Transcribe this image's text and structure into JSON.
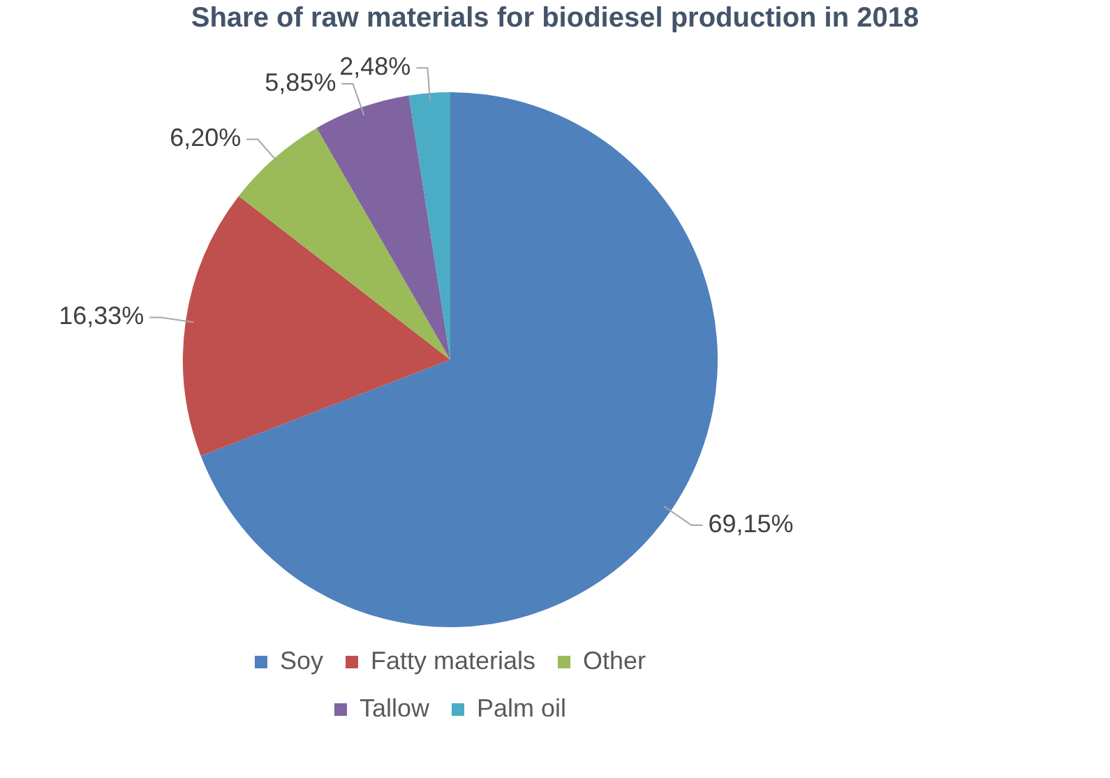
{
  "chart_data": {
    "type": "pie",
    "title": "Share of raw materials for biodiesel production in 2018",
    "categories": [
      "Soy",
      "Fatty materials",
      "Other",
      "Tallow",
      "Palm oil"
    ],
    "values": [
      69.15,
      16.33,
      6.2,
      5.85,
      2.48
    ],
    "colors": [
      "#4f81bd",
      "#c0504d",
      "#9bbb59",
      "#8064a2",
      "#4bacc6"
    ],
    "value_labels": [
      "69,15%",
      "16,33%",
      "6,20%",
      "5,85%",
      "2,48%"
    ],
    "legend": "bottom"
  }
}
